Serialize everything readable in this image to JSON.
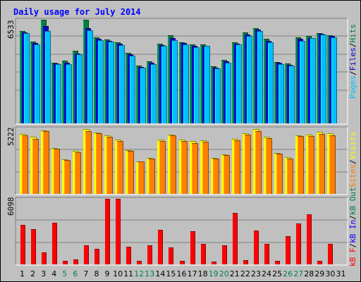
{
  "chart_data": {
    "type": "bar",
    "title": "Daily usage for July 2014",
    "categories": [
      "1",
      "2",
      "3",
      "4",
      "5",
      "6",
      "7",
      "8",
      "9",
      "10",
      "11",
      "12",
      "13",
      "14",
      "15",
      "16",
      "17",
      "18",
      "19",
      "20",
      "21",
      "22",
      "23",
      "24",
      "25",
      "26",
      "27",
      "28",
      "29",
      "30",
      "31"
    ],
    "weekend_days": [
      "5",
      "6",
      "12",
      "13",
      "19",
      "20",
      "26",
      "27"
    ],
    "panels": [
      {
        "id": "hits",
        "max_label": "6533",
        "ymax": 6533,
        "series": [
          {
            "name": "Hits",
            "color": "#008040",
            "values": [
              5810,
              5150,
              6533,
              3840,
              3950,
              4560,
              6533,
              5420,
              5310,
              5120,
              4430,
              3650,
              3900,
              5040,
              5570,
              5100,
              4960,
              4990,
              3600,
              3980,
              5130,
              5730,
              6000,
              5330,
              3880,
              3780,
              5420,
              5530,
              5710,
              5560,
              null
            ]
          },
          {
            "name": "Files",
            "color": "#0000c0",
            "values": [
              5740,
              5050,
              6120,
              3760,
              3830,
              4390,
              6010,
              5330,
              5220,
              5040,
              4350,
              3560,
              3800,
              4940,
              5380,
              5050,
              4870,
              4900,
              3520,
              3900,
              5040,
              5600,
              5930,
              5200,
              3810,
              3700,
              5330,
              5390,
              5640,
              5500,
              null
            ]
          },
          {
            "name": "Pages",
            "color": "#00c0ff",
            "values": [
              5690,
              4980,
              5800,
              3720,
              3720,
              4340,
              5850,
              5230,
              5140,
              4920,
              4260,
              3500,
              3750,
              4880,
              5240,
              4980,
              4780,
              4880,
              3450,
              3830,
              4980,
              5520,
              5840,
              5100,
              3740,
              3630,
              5190,
              5370,
              5590,
              5400,
              null
            ]
          }
        ]
      },
      {
        "id": "sites",
        "max_label": "5222",
        "ymax": 5222,
        "series": [
          {
            "name": "Visits",
            "color": "#ffff00",
            "values": [
              4800,
              4550,
              5050,
              3630,
              2750,
              3400,
              5150,
              4900,
              4650,
              4300,
              3500,
              2600,
              2850,
              4300,
              4720,
              4310,
              4190,
              4280,
              2860,
              3170,
              4370,
              4820,
              5150,
              4550,
              3240,
              2900,
              4660,
              4700,
              4920,
              4820,
              null
            ]
          },
          {
            "name": "Sites",
            "color": "#ff8000",
            "values": [
              4640,
              4380,
              4980,
              3580,
              2700,
              3330,
              5000,
              4840,
              4570,
              4210,
              3420,
              2570,
              2800,
              4220,
              4640,
              4210,
              4070,
              4170,
              2800,
              3110,
              4260,
              4720,
              4970,
              4460,
              3180,
              2830,
              4590,
              4630,
              4790,
              4680,
              null
            ]
          }
        ]
      },
      {
        "id": "kbytes",
        "max_label": "6098",
        "ymax": 6098,
        "series": [
          {
            "name": "KBytes",
            "color": "#ff0000",
            "values": [
              3650,
              3250,
              1110,
              3880,
              360,
              450,
              1780,
              1450,
              6098,
              6098,
              1640,
              330,
              1780,
              3230,
              1580,
              360,
              3050,
              1920,
              290,
              1750,
              4770,
              400,
              3160,
              1920,
              360,
              2600,
              3830,
              4680,
              320,
              1920,
              null
            ]
          }
        ]
      }
    ],
    "legend": {
      "hits": {
        "pages": "Pages",
        "files": "Files",
        "hits": "Hits",
        "sep": "/"
      },
      "sites": {
        "sites": "Sites",
        "visits": "Visits",
        "sep": "/"
      },
      "kbytes": {
        "kbf": "kB F",
        "kbin": "kB In",
        "kbout": "kB Out",
        "sep": "/"
      }
    },
    "colors": {
      "frame_bg": "#c0c0c0",
      "plot_bg": "#c0c0c0",
      "title": "#0000ff",
      "weekday_label": "#000000",
      "weekend_label": "#00804c",
      "gridline": "#808080",
      "legend_kbf": "#ff0000",
      "legend_kbin": "#0000ff",
      "legend_kbout": "#008040",
      "legend_pages": "#00c0ff",
      "legend_files": "#0000c0",
      "legend_hits": "#008040",
      "legend_sites": "#ff8000",
      "legend_visits": "#ffff00",
      "legend_sep": "#000000"
    },
    "grid": true
  }
}
